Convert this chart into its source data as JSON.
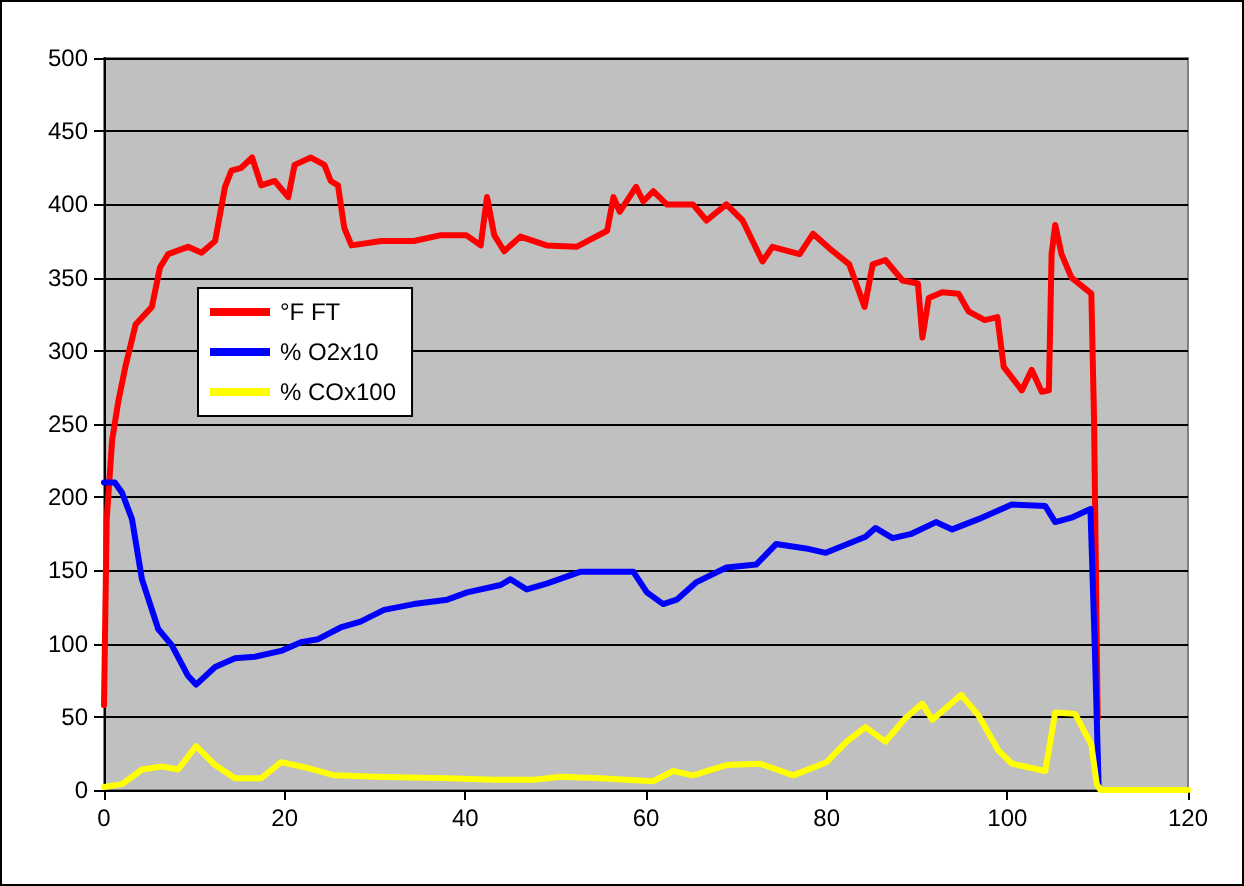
{
  "chart_data": {
    "type": "line",
    "xlim": [
      0,
      120
    ],
    "xticks": [
      0,
      20,
      40,
      60,
      80,
      100,
      120
    ],
    "ylim": [
      0,
      500
    ],
    "yticks": [
      0,
      50,
      100,
      150,
      200,
      250,
      300,
      350,
      400,
      450,
      500
    ],
    "grid": "y",
    "legend": "top left",
    "marker": "none",
    "line_style": "solid",
    "series": [
      {
        "name": "°F FT",
        "color": "#ff0000",
        "x": [
          0,
          0.3,
          0.9,
          1.6,
          2.4,
          3.5,
          5.3,
          6.2,
          7.1,
          9.3,
          10.8,
          12.3,
          13.4,
          14.1,
          15.2,
          16.4,
          17.4,
          18.9,
          20.4,
          21.1,
          22.9,
          24.4,
          25.1,
          25.9,
          26.6,
          27.4,
          30.7,
          34.3,
          37.3,
          40.1,
          41.7,
          42.4,
          43.2,
          44.3,
          46.1,
          49,
          52.3,
          55.7,
          56.4,
          57.1,
          58.9,
          59.7,
          60.8,
          62.3,
          65.2,
          66.7,
          68.9,
          70.7,
          72.9,
          74,
          77,
          78.5,
          80.3,
          82.5,
          84.2,
          85.1,
          86.5,
          88.4,
          90.1,
          90.6,
          91.3,
          92.8,
          94.6,
          95.7,
          97.5,
          98.9,
          99.6,
          101.6,
          102.7,
          103.8,
          104.6,
          104.9,
          105.3,
          106,
          107.1,
          109.3,
          109.6,
          110
        ],
        "values": [
          58,
          185,
          239,
          266,
          290,
          318,
          330,
          357,
          366,
          371,
          367,
          375,
          412,
          423,
          425,
          432,
          413,
          416,
          405,
          427,
          432,
          427,
          416,
          413,
          384,
          372,
          375,
          375,
          379,
          379,
          372,
          405,
          379,
          368,
          378,
          372,
          371,
          382,
          405,
          395,
          412,
          402,
          409,
          400,
          400,
          389,
          400,
          389,
          361,
          371,
          366,
          380,
          370,
          359,
          330,
          359,
          362,
          348,
          346,
          309,
          336,
          340,
          339,
          327,
          321,
          323,
          289,
          273,
          287,
          272,
          273,
          366,
          386,
          366,
          350,
          339,
          253,
          49
        ]
      },
      {
        "name": "% O2x10",
        "color": "#0000ff",
        "x": [
          0,
          1.2,
          2,
          3.1,
          4.2,
          6,
          7.5,
          9.3,
          10.2,
          12.3,
          14.5,
          16.7,
          19.6,
          21.8,
          23.7,
          26.2,
          28.4,
          31,
          34.3,
          38,
          40.2,
          43.9,
          45,
          46.8,
          49,
          52.7,
          56.4,
          58.6,
          60.1,
          61.9,
          63.4,
          65.6,
          68.9,
          72.2,
          74.4,
          77.7,
          79.9,
          84.3,
          85.4,
          87.3,
          89.4,
          92.1,
          93.9,
          96.8,
          100.5,
          104.2,
          105.3,
          107.1,
          109.2,
          109.7,
          110.1
        ],
        "values": [
          210,
          210,
          203,
          185,
          144,
          110,
          99,
          78,
          72,
          84,
          90,
          91,
          95,
          101,
          103,
          111,
          115,
          123,
          127,
          130,
          135,
          140,
          144,
          137,
          141,
          149,
          149,
          149,
          135,
          127,
          130,
          142,
          152,
          154,
          168,
          165,
          162,
          173,
          179,
          172,
          175,
          183,
          178,
          185,
          195,
          194,
          183,
          186,
          192,
          94,
          4
        ]
      },
      {
        "name": "% COx100",
        "color": "#ffff00",
        "x": [
          0,
          2,
          4.2,
          6.4,
          8.2,
          10.2,
          12.3,
          14.5,
          17.4,
          19.6,
          22.6,
          25.5,
          29.9,
          38,
          43.2,
          47.6,
          50.6,
          54.9,
          60.8,
          63,
          65.2,
          68.9,
          72.6,
          76.3,
          80,
          82.2,
          84.3,
          86.5,
          88.7,
          90.6,
          91.7,
          94.9,
          96.8,
          99,
          100.5,
          104.2,
          105.3,
          107.5,
          109.3,
          109.9,
          110.3,
          120
        ],
        "values": [
          2,
          4,
          14,
          16,
          14,
          30,
          17,
          8,
          8,
          19,
          15,
          10,
          9,
          8,
          7,
          7,
          9,
          8,
          6,
          13,
          10,
          17,
          18,
          10,
          19,
          33,
          43,
          33,
          49,
          59,
          48,
          65,
          51,
          27,
          18,
          13,
          53,
          52,
          31,
          4,
          0,
          0
        ]
      }
    ]
  }
}
